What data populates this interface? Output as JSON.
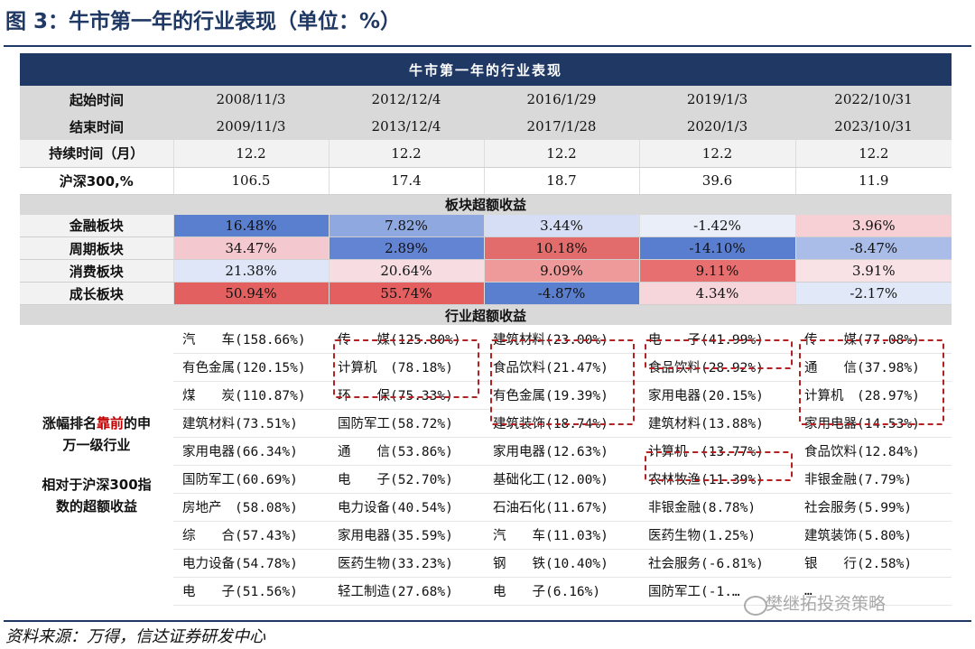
{
  "figure_title": "图 3：牛市第一年的行业表现（单位：%）",
  "table_title": "牛市第一年的行业表现",
  "rows": {
    "start": {
      "label": "起始时间",
      "values": [
        "2008/11/3",
        "2012/12/4",
        "2016/1/29",
        "2019/1/3",
        "2022/10/31"
      ]
    },
    "end": {
      "label": "结束时间",
      "values": [
        "2009/11/3",
        "2013/12/4",
        "2017/1/28",
        "2020/1/3",
        "2023/10/31"
      ]
    },
    "duration": {
      "label": "持续时间（月）",
      "values": [
        "12.2",
        "12.2",
        "12.2",
        "12.2",
        "12.2"
      ]
    },
    "hs300": {
      "label": "沪深300,%",
      "values": [
        "106.5",
        "17.4",
        "18.7",
        "39.6",
        "11.9"
      ]
    }
  },
  "section_sector": "板块超额收益",
  "sectors": [
    {
      "label": "金融板块",
      "values": [
        "16.48%",
        "7.82%",
        "3.44%",
        "-1.42%",
        "3.96%"
      ],
      "colors": [
        "#5b7fcf",
        "#8fa9e0",
        "#d5def4",
        "#e9eef9",
        "#f6d0d5"
      ]
    },
    {
      "label": "周期板块",
      "values": [
        "34.47%",
        "2.89%",
        "10.18%",
        "-14.10%",
        "-8.47%"
      ],
      "colors": [
        "#f3c8ce",
        "#6384d2",
        "#e26b6b",
        "#5a7ecf",
        "#a9bde8"
      ]
    },
    {
      "label": "消费板块",
      "values": [
        "21.38%",
        "20.64%",
        "9.09%",
        "9.11%",
        "3.91%"
      ],
      "colors": [
        "#dfe6f7",
        "#f7dde1",
        "#ef9a9a",
        "#e86f6f",
        "#f8e2e6"
      ]
    },
    {
      "label": "成长板块",
      "values": [
        "50.94%",
        "55.74%",
        "-4.87%",
        "4.34%",
        "-2.17%"
      ],
      "colors": [
        "#e36060",
        "#e45f5f",
        "#5b7fcf",
        "#f7d6db",
        "#e1e8f7"
      ]
    }
  ],
  "section_industry": "行业超额收益",
  "left_note": {
    "line1_a": "涨幅排名",
    "line1_red": "靠前",
    "line1_b": "的申",
    "line2": "万一级行业",
    "line3": "相对于沪深300指",
    "line4": "数的超额收益"
  },
  "industry_rows": [
    [
      "汽　　车(158.66%)",
      "传　　媒(125.80%)",
      "建筑材料(23.00%)",
      "电　　子(41.99%)",
      "传　　媒(77.08%)"
    ],
    [
      "有色金属(120.15%)",
      "计算机　(78.18%)",
      "食品饮料(21.47%)",
      "食品饮料(28.92%)",
      "通　　信(37.98%)"
    ],
    [
      "煤　　炭(110.87%)",
      "环　　保(75.33%)",
      "有色金属(19.39%)",
      "家用电器(20.15%)",
      "计算机　(28.97%)"
    ],
    [
      "建筑材料(73.51%)",
      "国防军工(58.72%)",
      "建筑装饰(18.74%)",
      "建筑材料(13.88%)",
      "家用电器(14.53%)"
    ],
    [
      "家用电器(66.34%)",
      "通　　信(53.86%)",
      "家用电器(12.63%)",
      "计算机　(13.77%)",
      "食品饮料(12.84%)"
    ],
    [
      "国防军工(60.69%)",
      "电　　子(52.70%)",
      "基础化工(12.00%)",
      "农林牧渔(11.39%)",
      "非银金融(7.79%)"
    ],
    [
      "房地产　(58.08%)",
      "电力设备(40.54%)",
      "石油石化(11.67%)",
      "非银金融(8.78%)",
      "社会服务(5.99%)"
    ],
    [
      "综　　合(57.43%)",
      "家用电器(35.59%)",
      "汽　　车(11.03%)",
      "医药生物(1.25%)",
      "建筑装饰(5.80%)"
    ],
    [
      "电力设备(54.78%)",
      "医药生物(33.23%)",
      "钢　　铁(10.40%)",
      "社会服务(-6.81%)",
      "银　　行(2.58%)"
    ],
    [
      "电　　子(51.56%)",
      "轻工制造(27.68%)",
      "电　　子(6.16%)",
      "国防军工(-1.…",
      "…"
    ]
  ],
  "source": "资料来源：万得，信达证券研发中心",
  "watermark": "樊继拓投资策略"
}
